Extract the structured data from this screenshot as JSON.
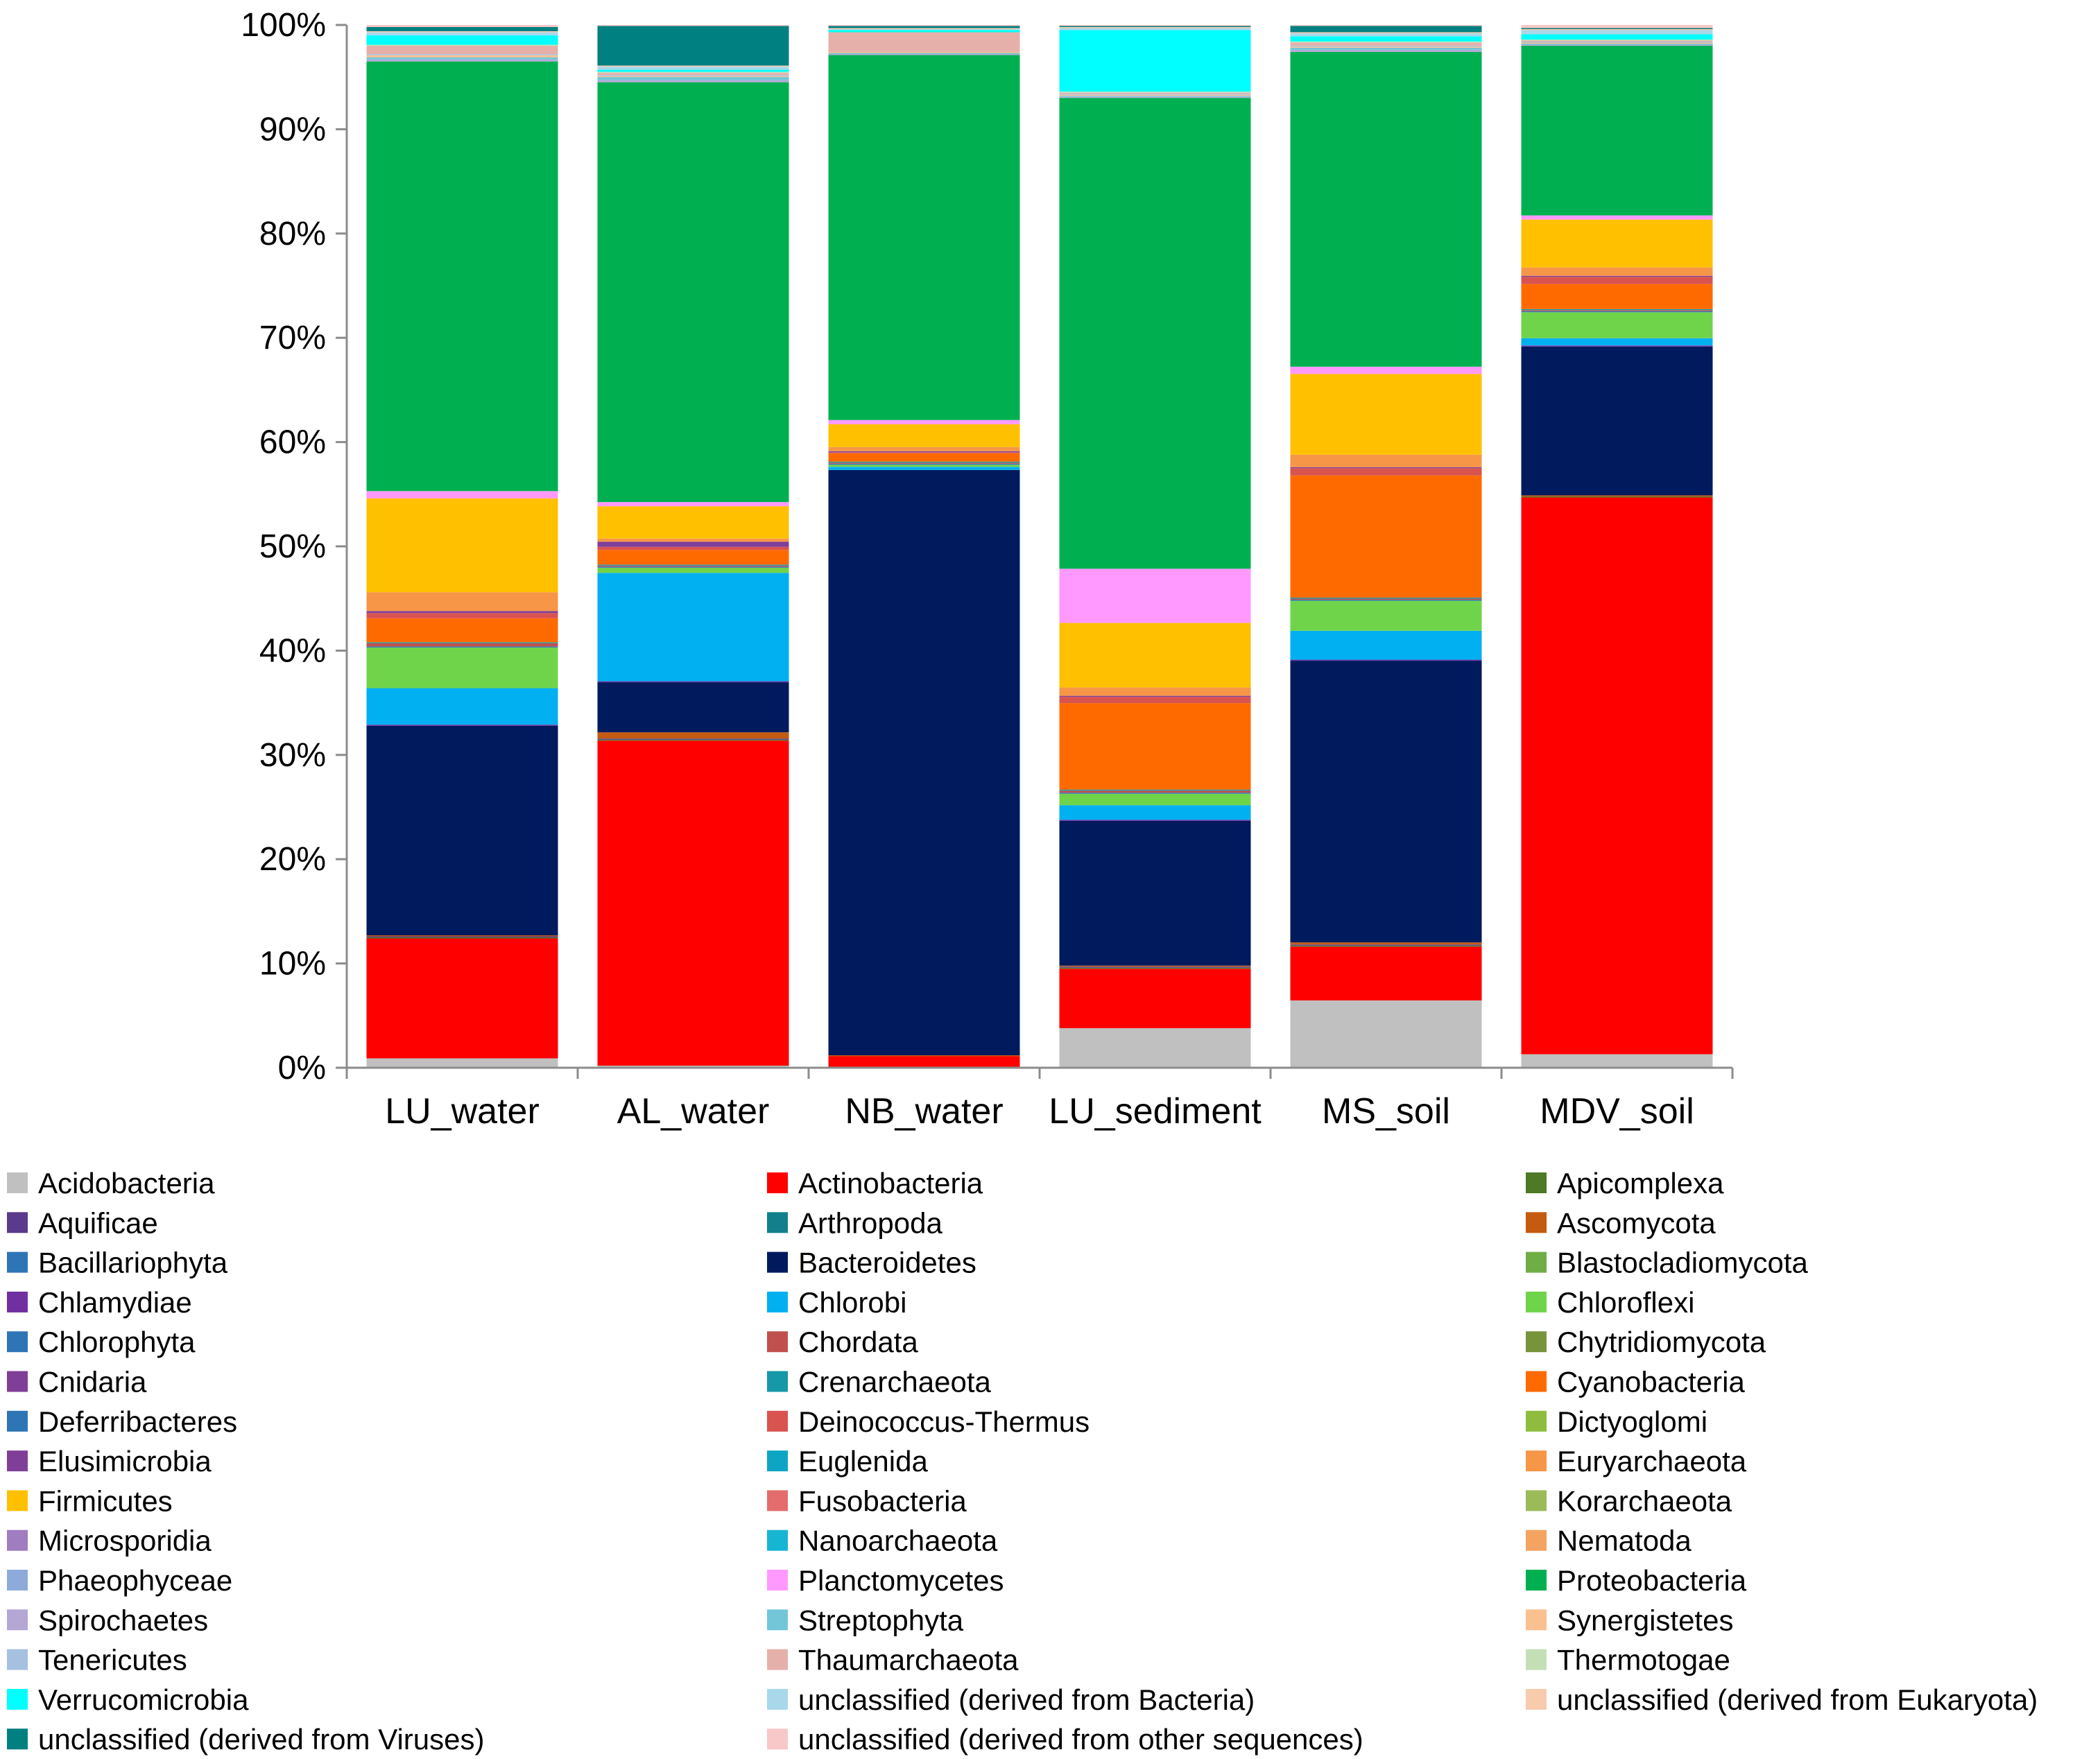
{
  "chart_data": {
    "type": "bar",
    "stacked": true,
    "percent": true,
    "title": "",
    "xlabel": "",
    "ylabel": "",
    "ylim": [
      0,
      100
    ],
    "yticks": [
      0,
      10,
      20,
      30,
      40,
      50,
      60,
      70,
      80,
      90,
      100
    ],
    "ytick_labels": [
      "0%",
      "10%",
      "20%",
      "30%",
      "40%",
      "50%",
      "60%",
      "70%",
      "80%",
      "90%",
      "100%"
    ],
    "categories": [
      "LU_water",
      "AL_water",
      "NB_water",
      "LU_sediment",
      "MS_soil",
      "MDV_soil"
    ],
    "legend_position": "bottom",
    "series": [
      {
        "name": "Acidobacteria",
        "color": "#c0c0c0",
        "values": [
          0.9,
          0.2,
          0.1,
          3.8,
          6.5,
          1.3
        ]
      },
      {
        "name": "Actinobacteria",
        "color": "#ff0000",
        "values": [
          11.5,
          31.2,
          1.0,
          5.7,
          5.2,
          53.5
        ]
      },
      {
        "name": "Apicomplexa",
        "color": "#4e7a27",
        "values": [
          0.1,
          0.1,
          0,
          0.1,
          0.1,
          0.1
        ]
      },
      {
        "name": "Aquificae",
        "color": "#5b3a8c",
        "values": [
          0.1,
          0.1,
          0,
          0.1,
          0.1,
          0
        ]
      },
      {
        "name": "Arthropoda",
        "color": "#11808c",
        "values": [
          0,
          0,
          0,
          0,
          0,
          0
        ]
      },
      {
        "name": "Ascomycota",
        "color": "#c55a11",
        "values": [
          0.1,
          0.6,
          0.1,
          0.1,
          0.2,
          0.1
        ]
      },
      {
        "name": "Bacillariophyta",
        "color": "#2e75b6",
        "values": [
          0,
          0,
          0,
          0,
          0,
          0
        ]
      },
      {
        "name": "Bacteroidetes",
        "color": "#001a5e",
        "values": [
          20.1,
          4.8,
          56.3,
          13.9,
          27.2,
          14.3
        ]
      },
      {
        "name": "Blastocladiomycota",
        "color": "#70ad47",
        "values": [
          0,
          0,
          0,
          0,
          0,
          0
        ]
      },
      {
        "name": "Chlamydiae",
        "color": "#7030a0",
        "values": [
          0.1,
          0.1,
          0,
          0.1,
          0.1,
          0.1
        ]
      },
      {
        "name": "Chlorobi",
        "color": "#00b0f0",
        "values": [
          3.5,
          10.4,
          0.3,
          1.4,
          2.8,
          0.7
        ]
      },
      {
        "name": "Chloroflexi",
        "color": "#70d44b",
        "values": [
          3.9,
          0.5,
          0.2,
          1.1,
          2.9,
          2.5
        ]
      },
      {
        "name": "Chlorophyta",
        "color": "#2e75b6",
        "values": [
          0.1,
          0.1,
          0.1,
          0.1,
          0.1,
          0.1
        ]
      },
      {
        "name": "Chordata",
        "color": "#c0504d",
        "values": [
          0.3,
          0.1,
          0.1,
          0.2,
          0.1,
          0.1
        ]
      },
      {
        "name": "Chytridiomycota",
        "color": "#77933c",
        "values": [
          0,
          0,
          0,
          0,
          0,
          0
        ]
      },
      {
        "name": "Cnidaria",
        "color": "#7f3f98",
        "values": [
          0,
          0,
          0,
          0,
          0,
          0
        ]
      },
      {
        "name": "Crenarchaeota",
        "color": "#1798a8",
        "values": [
          0.1,
          0.1,
          0.1,
          0.1,
          0.1,
          0.1
        ]
      },
      {
        "name": "Cyanobacteria",
        "color": "#ff6a00",
        "values": [
          2.3,
          1.4,
          0.8,
          8.3,
          11.8,
          2.4
        ]
      },
      {
        "name": "Deferribacteres",
        "color": "#2e75b6",
        "values": [
          0,
          0,
          0,
          0,
          0,
          0
        ]
      },
      {
        "name": "Deinococcus-Thermus",
        "color": "#d9534f",
        "values": [
          0.5,
          0.3,
          0.1,
          0.6,
          0.7,
          0.7
        ]
      },
      {
        "name": "Dictyoglomi",
        "color": "#8fbc3f",
        "values": [
          0,
          0,
          0,
          0,
          0,
          0
        ]
      },
      {
        "name": "Elusimicrobia",
        "color": "#7f3f98",
        "values": [
          0.2,
          0.5,
          0.1,
          0.1,
          0.1,
          0.1
        ]
      },
      {
        "name": "Euglenida",
        "color": "#0ea5c4",
        "values": [
          0,
          0,
          0,
          0,
          0,
          0
        ]
      },
      {
        "name": "Euryarchaeota",
        "color": "#f79646",
        "values": [
          1.8,
          0.3,
          0.4,
          0.8,
          1.2,
          0.8
        ]
      },
      {
        "name": "Firmicutes",
        "color": "#ffc000",
        "values": [
          9.0,
          3.1,
          2.2,
          6.2,
          7.8,
          4.6
        ]
      },
      {
        "name": "Fusobacteria",
        "color": "#e46c6c",
        "values": [
          0,
          0,
          0,
          0,
          0,
          0
        ]
      },
      {
        "name": "Korarchaeota",
        "color": "#9bbb59",
        "values": [
          0,
          0,
          0,
          0,
          0,
          0
        ]
      },
      {
        "name": "Microsporidia",
        "color": "#a07cc0",
        "values": [
          0,
          0,
          0,
          0,
          0,
          0
        ]
      },
      {
        "name": "Nanoarchaeota",
        "color": "#17b5d4",
        "values": [
          0,
          0,
          0,
          0,
          0,
          0
        ]
      },
      {
        "name": "Nematoda",
        "color": "#f4a460",
        "values": [
          0,
          0,
          0,
          0,
          0,
          0
        ]
      },
      {
        "name": "Phaeophyceae",
        "color": "#8eaadb",
        "values": [
          0,
          0,
          0,
          0,
          0,
          0
        ]
      },
      {
        "name": "Planctomycetes",
        "color": "#ff99ff",
        "values": [
          0.7,
          0.4,
          0.4,
          5.2,
          0.7,
          0.4
        ]
      },
      {
        "name": "Proteobacteria",
        "color": "#00b050",
        "values": [
          41.2,
          40.3,
          35.1,
          45.2,
          30.4,
          16.3
        ]
      },
      {
        "name": "Spirochaetes",
        "color": "#b4a7d6",
        "values": [
          0.2,
          0.2,
          0.1,
          0.1,
          0.2,
          0.1
        ]
      },
      {
        "name": "Streptophyta",
        "color": "#73c6d8",
        "values": [
          0.2,
          0.3,
          0.1,
          0.1,
          0.2,
          0.1
        ]
      },
      {
        "name": "Synergistetes",
        "color": "#fac090",
        "values": [
          0.2,
          0.1,
          0.1,
          0.1,
          0.1,
          0.1
        ]
      },
      {
        "name": "Tenericutes",
        "color": "#a6c0e0",
        "values": [
          0.1,
          0.1,
          0,
          0.1,
          0.1,
          0.1
        ]
      },
      {
        "name": "Thaumarchaeota",
        "color": "#e6b0aa",
        "values": [
          0.8,
          0.2,
          1.9,
          0.1,
          0.3,
          0.1
        ]
      },
      {
        "name": "Thermotogae",
        "color": "#c4dfb6",
        "values": [
          0.1,
          0.1,
          0,
          0.1,
          0.1,
          0.1
        ]
      },
      {
        "name": "Verrucomicrobia",
        "color": "#00ffff",
        "values": [
          0.9,
          0.2,
          0.2,
          5.9,
          0.5,
          0.5
        ]
      },
      {
        "name": "unclassified (derived from Bacteria)",
        "color": "#a8d8ea",
        "values": [
          0.3,
          0.3,
          0.1,
          0.2,
          0.3,
          0.4
        ]
      },
      {
        "name": "unclassified (derived from Eukaryota)",
        "color": "#f8cbad",
        "values": [
          0.1,
          0.1,
          0.1,
          0.1,
          0.1,
          0.1
        ]
      },
      {
        "name": "unclassified (derived from Viruses)",
        "color": "#008080",
        "values": [
          0.4,
          3.8,
          0.2,
          0.1,
          0.6,
          0.1
        ]
      },
      {
        "name": "unclassified (derived from other sequences)",
        "color": "#f8c8c8",
        "values": [
          0.2,
          0.1,
          0.1,
          0.1,
          0.1,
          0.3
        ]
      }
    ]
  }
}
